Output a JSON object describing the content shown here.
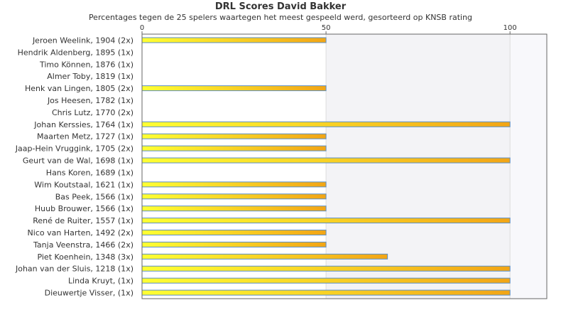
{
  "chart_data": {
    "type": "bar",
    "orientation": "horizontal",
    "title": "DRL Scores David Bakker",
    "subtitle": "Percentages tegen de 25 spelers waartegen het meest gespeeld werd, gesorteerd op KNSB rating",
    "xlim": [
      0,
      110
    ],
    "ticks": [
      0,
      50,
      100
    ],
    "categories": [
      "Jeroen Weelink, 1904 (2x)",
      "Hendrik Aldenberg, 1895 (1x)",
      "Timo Können, 1876 (1x)",
      "Almer Toby, 1819 (1x)",
      "Henk van Lingen, 1805 (2x)",
      "Jos Heesen, 1782 (1x)",
      "Chris Lutz, 1770 (2x)",
      "Johan Kerssies, 1764 (1x)",
      "Maarten Metz, 1727 (1x)",
      "Jaap-Hein Vruggink, 1705 (2x)",
      "Geurt van de Wal, 1698 (1x)",
      "Hans Koren, 1689 (1x)",
      "Wim Koutstaal, 1621 (1x)",
      "Bas Peek, 1566 (1x)",
      "Huub Brouwer, 1566 (1x)",
      "René de Ruiter, 1557 (1x)",
      "Nico van Harten, 1492 (2x)",
      "Tanja Veenstra, 1466 (2x)",
      "Piet Koenhein, 1348 (3x)",
      "Johan van der Sluis, 1218 (1x)",
      "Linda Kruyt,  (1x)",
      "Dieuwertje Visser,  (1x)"
    ],
    "values": [
      50,
      0,
      0,
      0,
      50,
      0,
      0,
      100,
      50,
      50,
      100,
      0,
      50,
      50,
      50,
      100,
      50,
      50,
      66.7,
      100,
      100,
      100
    ],
    "grid": true,
    "bar_gradient": [
      "#ffff33",
      "#f2a516"
    ],
    "bar_border": "#5b8fc6",
    "band_color": "#f3f3f6"
  }
}
